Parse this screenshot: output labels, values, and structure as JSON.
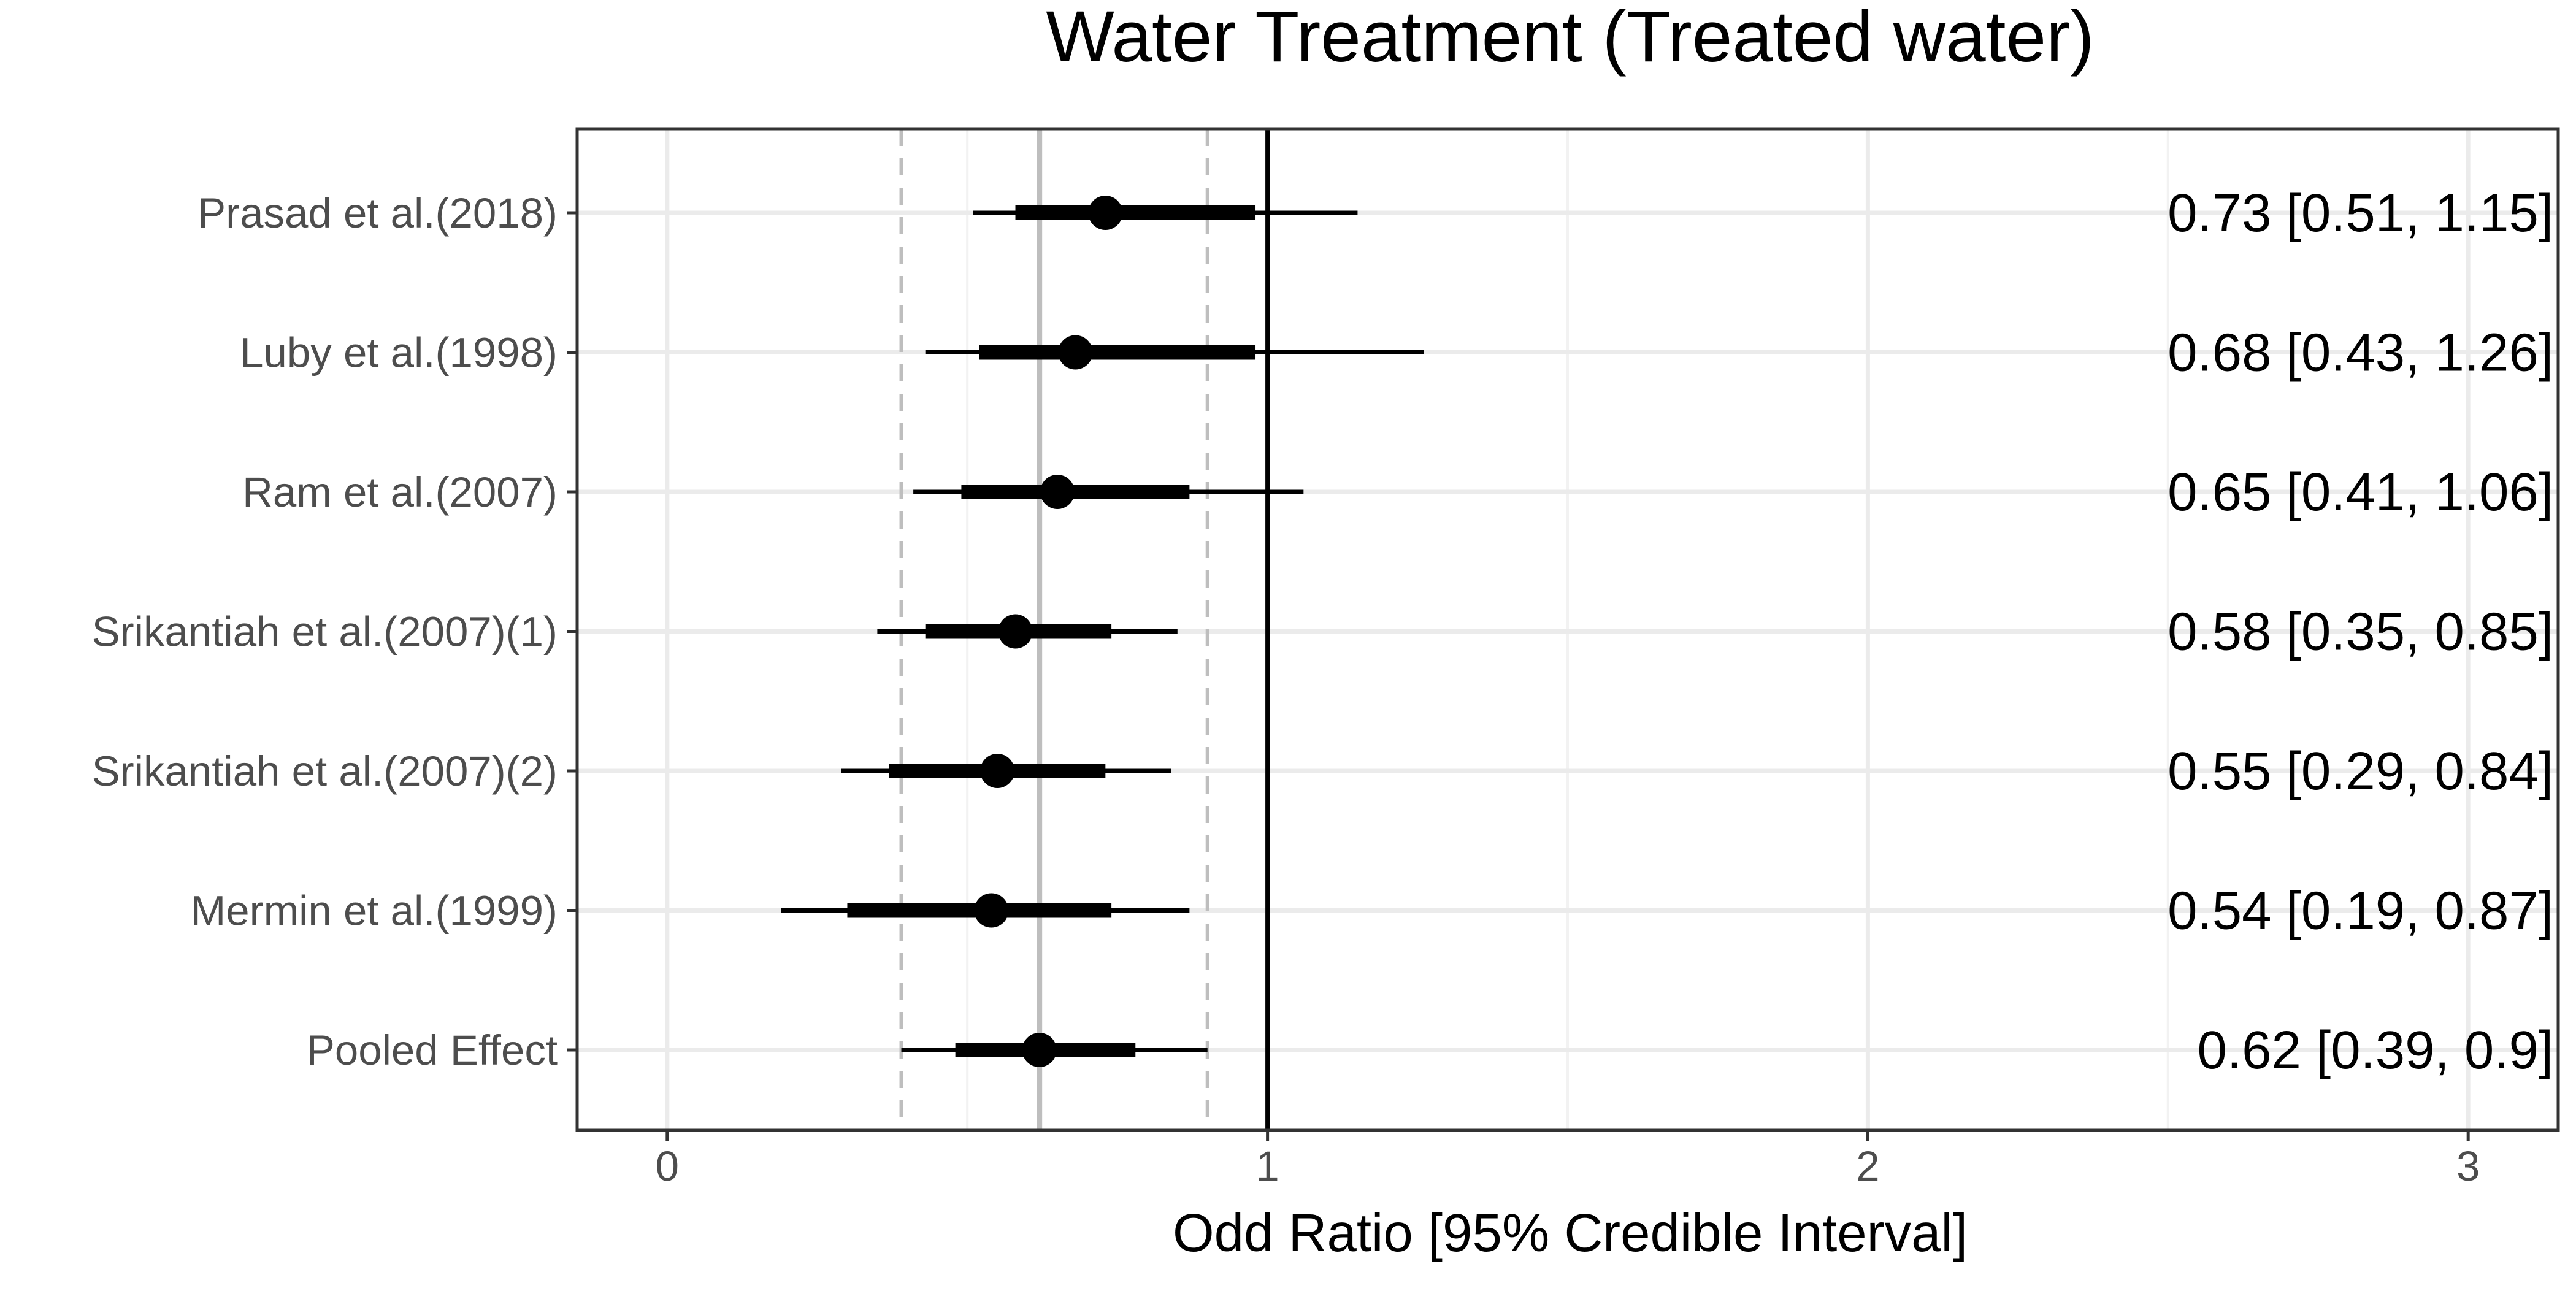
{
  "chart_data": {
    "type": "forest",
    "title": "Water Treatment (Treated water)",
    "xlabel": "Odd Ratio [95% Credible Interval]",
    "ylabel": "",
    "xlim": [
      -0.15,
      3.15
    ],
    "xticks": [
      0,
      1,
      2,
      3
    ],
    "xtick_labels": [
      "0",
      "1",
      "2",
      "3"
    ],
    "grid": true,
    "reference_line": 1,
    "pooled_line": {
      "estimate": 0.62,
      "lower": 0.39,
      "upper": 0.9
    },
    "studies": [
      {
        "name": "Prasad et al.(2018)",
        "estimate": 0.73,
        "lower": 0.51,
        "upper": 1.15,
        "inner_lower": 0.58,
        "inner_upper": 0.98,
        "label": "0.73 [0.51, 1.15]"
      },
      {
        "name": "Luby et al.(1998)",
        "estimate": 0.68,
        "lower": 0.43,
        "upper": 1.26,
        "inner_lower": 0.52,
        "inner_upper": 0.98,
        "label": "0.68 [0.43, 1.26]"
      },
      {
        "name": "Ram et al.(2007)",
        "estimate": 0.65,
        "lower": 0.41,
        "upper": 1.06,
        "inner_lower": 0.49,
        "inner_upper": 0.87,
        "label": "0.65 [0.41, 1.06]"
      },
      {
        "name": "Srikantiah et al.(2007)(1)",
        "estimate": 0.58,
        "lower": 0.35,
        "upper": 0.85,
        "inner_lower": 0.43,
        "inner_upper": 0.74,
        "label": "0.58 [0.35, 0.85]"
      },
      {
        "name": "Srikantiah et al.(2007)(2)",
        "estimate": 0.55,
        "lower": 0.29,
        "upper": 0.84,
        "inner_lower": 0.37,
        "inner_upper": 0.73,
        "label": "0.55 [0.29, 0.84]"
      },
      {
        "name": "Mermin et al.(1999)",
        "estimate": 0.54,
        "lower": 0.19,
        "upper": 0.87,
        "inner_lower": 0.3,
        "inner_upper": 0.74,
        "label": "0.54 [0.19, 0.87]"
      },
      {
        "name": "Pooled Effect",
        "estimate": 0.62,
        "lower": 0.39,
        "upper": 0.9,
        "inner_lower": 0.48,
        "inner_upper": 0.78,
        "label": "0.62 [0.39, 0.9]"
      }
    ]
  }
}
